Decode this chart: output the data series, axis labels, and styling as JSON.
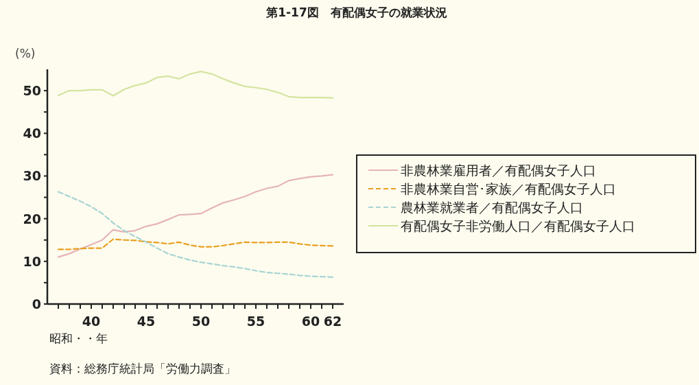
{
  "chart_data": {
    "type": "line",
    "title": "第1-17図　有配偶女子の就業状況",
    "ylabel": "(%)",
    "xlabel": "昭和・・年",
    "annotations": [
      "資料：総務庁統計局「労働力調査」"
    ],
    "x": [
      37,
      38,
      39,
      40,
      41,
      42,
      43,
      44,
      45,
      46,
      47,
      48,
      49,
      50,
      51,
      52,
      53,
      54,
      55,
      56,
      57,
      58,
      59,
      60,
      61,
      62
    ],
    "xlim": [
      36,
      63
    ],
    "xticks": [
      {
        "value": 37,
        "label": null
      },
      {
        "value": 38,
        "label": null
      },
      {
        "value": 39,
        "label": null
      },
      40,
      {
        "value": 41,
        "label": null
      },
      {
        "value": 42,
        "label": null
      },
      {
        "value": 43,
        "label": null
      },
      {
        "value": 44,
        "label": null
      },
      45,
      {
        "value": 46,
        "label": null
      },
      {
        "value": 47,
        "label": null
      },
      {
        "value": 48,
        "label": null
      },
      {
        "value": 49,
        "label": null
      },
      50,
      {
        "value": 51,
        "label": null
      },
      {
        "value": 52,
        "label": null
      },
      {
        "value": 53,
        "label": null
      },
      {
        "value": 54,
        "label": null
      },
      55,
      {
        "value": 56,
        "label": null
      },
      {
        "value": 57,
        "label": null
      },
      {
        "value": 58,
        "label": null
      },
      {
        "value": 59,
        "label": null
      },
      60,
      {
        "value": 61,
        "label": null
      },
      62
    ],
    "ylim": [
      0,
      55
    ],
    "yticks": [
      0,
      {
        "value": 5,
        "label": null
      },
      10,
      {
        "value": 15,
        "label": null
      },
      20,
      {
        "value": 25,
        "label": null
      },
      30,
      {
        "value": 35,
        "label": null
      },
      40,
      {
        "value": 45,
        "label": null
      },
      50
    ],
    "legend": "right",
    "marker": "none",
    "series": [
      {
        "name": "非農林業雇用者／有配偶女子人口",
        "color": "#e6b4b8",
        "line_style": "solid",
        "values": [
          11.0,
          11.8,
          12.9,
          13.9,
          15.0,
          17.4,
          16.9,
          17.2,
          18.2,
          18.8,
          19.8,
          20.9,
          21.0,
          21.2,
          22.5,
          23.7,
          24.4,
          25.2,
          26.3,
          27.1,
          27.6,
          28.9,
          29.4,
          29.8,
          30.0,
          30.3
        ]
      },
      {
        "name": "非農林業自営･家族／有配偶女子人口",
        "color": "#e8a020",
        "line_style": "dashed",
        "values": [
          12.8,
          12.8,
          13.0,
          13.1,
          13.1,
          15.2,
          15.0,
          14.9,
          14.6,
          14.4,
          14.1,
          14.5,
          13.8,
          13.4,
          13.4,
          13.7,
          14.1,
          14.5,
          14.4,
          14.4,
          14.5,
          14.5,
          14.1,
          13.8,
          13.7,
          13.6
        ]
      },
      {
        "name": "農林業就業者／有配偶女子人口",
        "color": "#a8d4d4",
        "line_style": "dashed",
        "values": [
          26.3,
          25.2,
          24.1,
          22.8,
          21.2,
          19.0,
          17.2,
          15.8,
          14.5,
          13.1,
          11.8,
          11.0,
          10.3,
          9.8,
          9.4,
          9.0,
          8.7,
          8.3,
          7.8,
          7.4,
          7.2,
          7.0,
          6.7,
          6.5,
          6.4,
          6.3
        ]
      },
      {
        "name": "有配偶女子非労働人口／有配偶女子人口",
        "color": "#d4e4a0",
        "line_style": "solid",
        "values": [
          48.9,
          50.0,
          50.0,
          50.2,
          50.2,
          48.8,
          50.3,
          51.2,
          51.8,
          53.1,
          53.4,
          52.8,
          53.9,
          54.5,
          53.9,
          52.8,
          51.8,
          51.0,
          50.7,
          50.3,
          49.6,
          48.6,
          48.4,
          48.4,
          48.4,
          48.3
        ]
      }
    ]
  }
}
